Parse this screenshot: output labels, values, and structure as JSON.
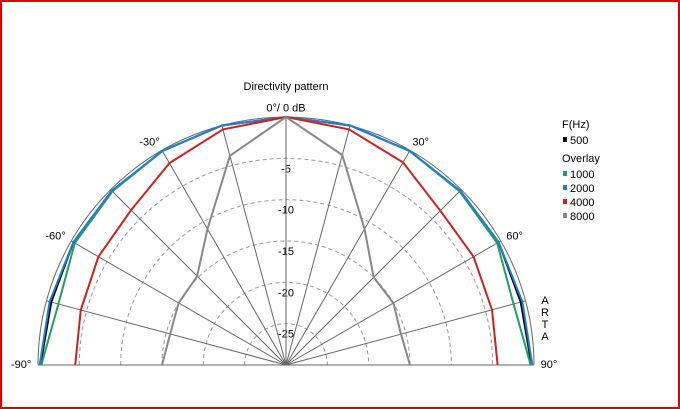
{
  "chart_data": {
    "type": "polar",
    "title": "Directivity pattern",
    "theta": [
      -90,
      -75,
      -60,
      -45,
      -30,
      -15,
      0,
      15,
      30,
      45,
      60,
      75,
      90
    ],
    "thetaticks": [
      {
        "value": -90,
        "label": "-90°"
      },
      {
        "value": -60,
        "label": "-60°"
      },
      {
        "value": -30,
        "label": "-30°"
      },
      {
        "value": 0,
        "label": "0°/ 0 dB"
      },
      {
        "value": 30,
        "label": "30°"
      },
      {
        "value": 60,
        "label": "60°"
      },
      {
        "value": 90,
        "label": "90°"
      }
    ],
    "thetaminor": [
      -75,
      -45,
      -15,
      15,
      45,
      75
    ],
    "rlim": [
      -30,
      0
    ],
    "rticks": [
      -25,
      -20,
      -15,
      -10,
      -5
    ],
    "legend_title": "F(Hz)",
    "overlay_title": "Overlay",
    "watermark": "ARTA",
    "series": [
      {
        "name": "500",
        "color": "#000000",
        "values": [
          -0.3,
          -0.6,
          -0.3,
          -0.2,
          -0.1,
          0,
          0,
          0,
          -0.1,
          -0.2,
          -0.3,
          -0.6,
          -0.3
        ]
      },
      {
        "name": "1000",
        "color": "#20a060",
        "values": [
          -0.4,
          -1.5,
          -0.5,
          -0.3,
          -0.1,
          0,
          0,
          0,
          -0.1,
          -0.3,
          -0.5,
          -1.5,
          -0.4
        ]
      },
      {
        "name": "2000",
        "color": "#2080d0",
        "values": [
          -0.2,
          -0.4,
          -0.3,
          -0.2,
          -0.1,
          0,
          0,
          0,
          -0.1,
          -0.2,
          -0.3,
          -0.4,
          -0.2
        ]
      },
      {
        "name": "4000",
        "color": "#d02020",
        "values": [
          -4.5,
          -4.3,
          -3.8,
          -3.5,
          -1.8,
          -0.5,
          0,
          -0.5,
          -1.7,
          -3.6,
          -3.8,
          -4.2,
          -4.4
        ]
      },
      {
        "name": "8000",
        "color": "#888888",
        "values": [
          -15,
          -15.5,
          -15,
          -14.8,
          -11,
          -3.8,
          0,
          -3.7,
          -11,
          -15,
          -15,
          -15.6,
          -15
        ]
      }
    ]
  }
}
